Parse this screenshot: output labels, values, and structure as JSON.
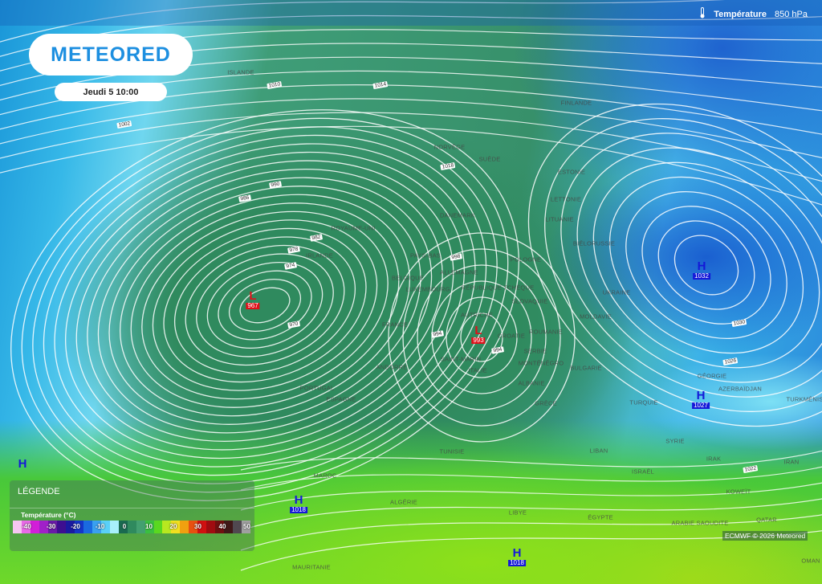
{
  "header": {
    "logo": "METEORED",
    "date": "Jeudi 5 10:00",
    "layer_icon": "thermometer-icon",
    "layer_name": "Température",
    "layer_level": "850 hPa"
  },
  "legend": {
    "title": "LÉGENDE",
    "subtitle": "Température (°C)",
    "ticks": [
      "-40",
      "-30",
      "-20",
      "-10",
      "0",
      "10",
      "20",
      "30",
      "40",
      "50"
    ],
    "colors": [
      "#f7c6f2",
      "#e86ae6",
      "#d21fd8",
      "#a020c8",
      "#6a1aa8",
      "#3d0f90",
      "#1a1aa0",
      "#1436c8",
      "#1a6ae0",
      "#3aa0f0",
      "#5ad0f8",
      "#a8f0fc",
      "#1a6a50",
      "#2f8a5e",
      "#43a070",
      "#3ac040",
      "#5ad820",
      "#b8e820",
      "#f0e020",
      "#f0a010",
      "#e85010",
      "#d01010",
      "#a00c10",
      "#701010",
      "#401818",
      "#504850",
      "#a0a0a0"
    ]
  },
  "credit": "ECMWF © 2026 Meteored",
  "countries": [
    "Islande",
    "Norvège",
    "Suède",
    "Finlande",
    "Estonie",
    "Lettonie",
    "Lituanie",
    "Biélorussie",
    "Danemark",
    "Royaume-Uni",
    "Irlande",
    "Pays-Bas",
    "Belgique",
    "Luxembourg",
    "Allemagne",
    "Pologne",
    "République Tchèque",
    "Slovaquie",
    "Ukraine",
    "Moldavie",
    "Autriche",
    "Croatie",
    "France",
    "Saint-Marin",
    "Italie",
    "Serbie",
    "Roumanie",
    "Monténégro",
    "Bulgarie",
    "Albanie",
    "Grèce",
    "Andorre",
    "Portugal",
    "Espagne",
    "Tunisie",
    "Maroc",
    "Algérie",
    "Libye",
    "Égypte",
    "Mauritanie",
    "Turquie",
    "Géorgie",
    "Azerbaïdjan",
    "Turkménistan",
    "Syrie",
    "Liban",
    "Israël",
    "Irak",
    "Iran",
    "Koweït",
    "Arabie Saoudite",
    "Qatar",
    "Oman"
  ],
  "isobar_labels": [
    "1014",
    "1002",
    "1010",
    "986",
    "990",
    "982",
    "978",
    "974",
    "970",
    "998",
    "994",
    "994",
    "1018",
    "1030",
    "1026",
    "1022"
  ],
  "pressure_centers": [
    {
      "type": "L",
      "value": "967"
    },
    {
      "type": "L",
      "value": "993"
    },
    {
      "type": "H",
      "value": "1032"
    },
    {
      "type": "H",
      "value": "1027"
    },
    {
      "type": "H",
      "value": "1018"
    },
    {
      "type": "H",
      "value": "1018"
    },
    {
      "type": "H",
      "value": ""
    }
  ],
  "colors": {
    "low": "#e0101a",
    "high": "#1418d8",
    "logo": "#1d8fe0"
  }
}
